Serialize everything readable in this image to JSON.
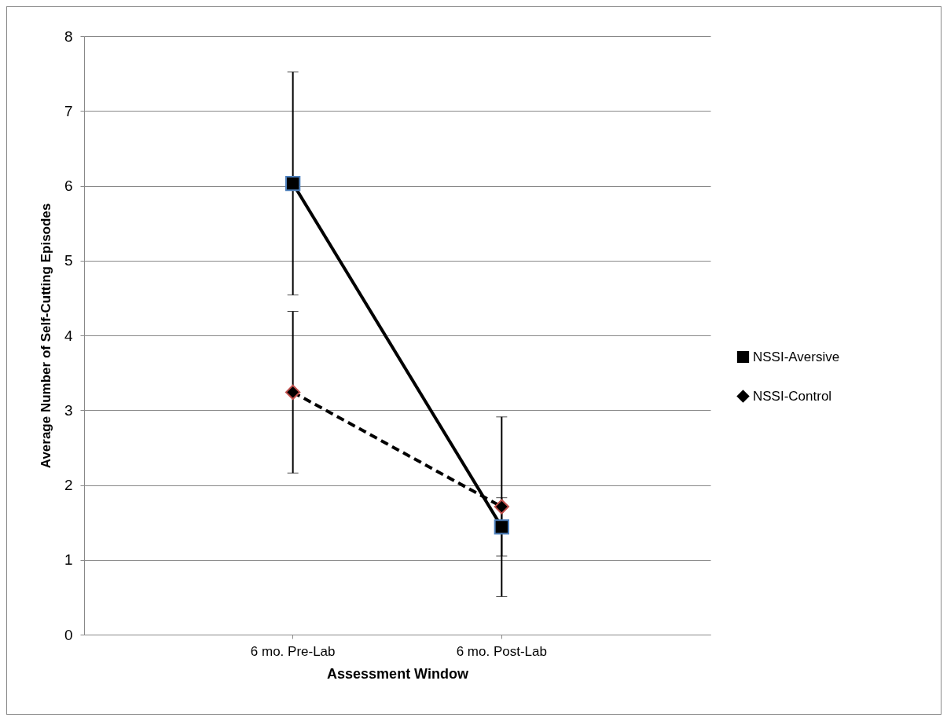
{
  "chart_data": {
    "type": "line",
    "xlabel": "Assessment Window",
    "ylabel": "Average Number of Self-Cutting Episodes",
    "categories": [
      "6 mo. Pre-Lab",
      "6 mo. Post-Lab"
    ],
    "series": [
      {
        "name": "NSSI-Aversive",
        "color": "#000000",
        "marker": "square",
        "line_style": "solid",
        "values": [
          6.03,
          1.44
        ],
        "errors": [
          [
            4.54,
            7.52
          ],
          [
            0.51,
            2.91
          ]
        ]
      },
      {
        "name": "NSSI-Control",
        "color": "#000000",
        "marker": "diamond",
        "line_style": "dashed",
        "values": [
          3.24,
          1.71
        ],
        "errors": [
          [
            2.16,
            4.32
          ],
          [
            1.05,
            1.83
          ]
        ]
      }
    ],
    "ylim": [
      0,
      8
    ],
    "yticks": [
      0,
      1,
      2,
      3,
      4,
      5,
      6,
      7,
      8
    ],
    "grid": "y",
    "legend": "right"
  }
}
